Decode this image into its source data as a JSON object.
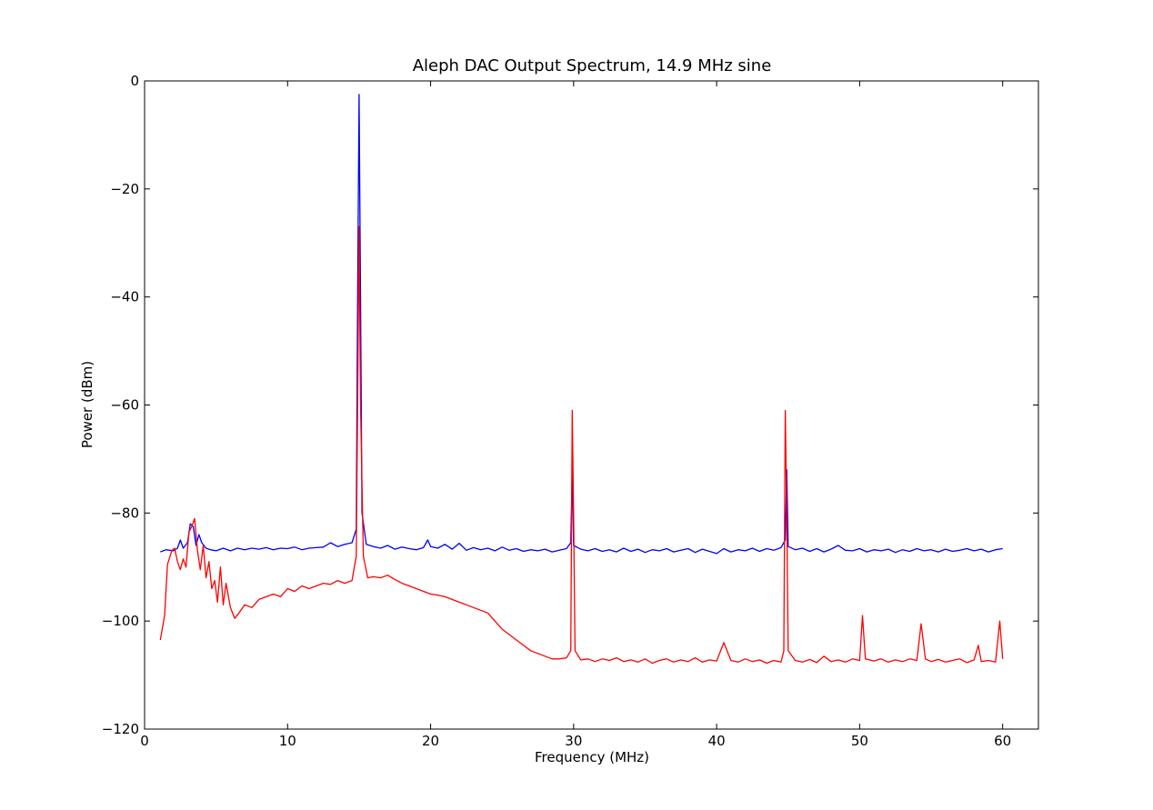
{
  "chart_data": {
    "type": "line",
    "title": "Aleph DAC Output Spectrum, 14.9 MHz sine",
    "xlabel": "Frequency (MHz)",
    "ylabel": "Power (dBm)",
    "xlim": [
      0,
      62.5
    ],
    "ylim": [
      -120,
      0
    ],
    "xticks": [
      0,
      10,
      20,
      30,
      40,
      50,
      60
    ],
    "yticks": [
      0,
      -20,
      -40,
      -60,
      -80,
      -100,
      -120
    ],
    "xtick_labels": [
      "0",
      "10",
      "20",
      "30",
      "40",
      "50",
      "60"
    ],
    "ytick_labels": [
      "0",
      "−20",
      "−40",
      "−60",
      "−80",
      "−100",
      "−120"
    ],
    "grid": false,
    "legend": "none",
    "series": [
      {
        "color": "#0000ff",
        "points": [
          [
            1.1,
            -87.2
          ],
          [
            1.5,
            -86.8
          ],
          [
            2.0,
            -87.0
          ],
          [
            2.3,
            -86.5
          ],
          [
            2.5,
            -85.0
          ],
          [
            2.7,
            -86.5
          ],
          [
            3.0,
            -85.5
          ],
          [
            3.2,
            -82.0
          ],
          [
            3.4,
            -82.5
          ],
          [
            3.6,
            -86.0
          ],
          [
            3.8,
            -84.0
          ],
          [
            4.0,
            -85.5
          ],
          [
            4.3,
            -86.5
          ],
          [
            4.6,
            -86.8
          ],
          [
            5.0,
            -87.0
          ],
          [
            5.5,
            -86.5
          ],
          [
            6.0,
            -87.0
          ],
          [
            6.5,
            -86.5
          ],
          [
            7.0,
            -86.8
          ],
          [
            7.5,
            -86.5
          ],
          [
            8.0,
            -86.7
          ],
          [
            8.5,
            -86.4
          ],
          [
            9.0,
            -86.8
          ],
          [
            9.5,
            -86.5
          ],
          [
            10.0,
            -86.6
          ],
          [
            10.5,
            -86.3
          ],
          [
            11.0,
            -86.8
          ],
          [
            11.5,
            -86.5
          ],
          [
            12.0,
            -86.4
          ],
          [
            12.5,
            -86.3
          ],
          [
            13.0,
            -85.5
          ],
          [
            13.5,
            -86.2
          ],
          [
            14.0,
            -85.8
          ],
          [
            14.5,
            -85.5
          ],
          [
            14.8,
            -83.0
          ],
          [
            14.9,
            -40.0
          ],
          [
            15.0,
            -2.5
          ],
          [
            15.1,
            -40.0
          ],
          [
            15.2,
            -80.0
          ],
          [
            15.5,
            -85.8
          ],
          [
            16.0,
            -86.2
          ],
          [
            16.5,
            -86.5
          ],
          [
            17.0,
            -86.0
          ],
          [
            17.5,
            -86.7
          ],
          [
            18.0,
            -86.3
          ],
          [
            18.5,
            -86.6
          ],
          [
            19.0,
            -86.8
          ],
          [
            19.5,
            -86.4
          ],
          [
            19.8,
            -85.0
          ],
          [
            20.0,
            -86.2
          ],
          [
            20.5,
            -86.5
          ],
          [
            21.0,
            -85.8
          ],
          [
            21.5,
            -86.7
          ],
          [
            22.0,
            -85.6
          ],
          [
            22.5,
            -86.9
          ],
          [
            23.0,
            -86.4
          ],
          [
            23.5,
            -86.8
          ],
          [
            24.0,
            -86.5
          ],
          [
            24.5,
            -87.0
          ],
          [
            25.0,
            -86.3
          ],
          [
            25.5,
            -86.9
          ],
          [
            26.0,
            -86.6
          ],
          [
            26.5,
            -87.1
          ],
          [
            27.0,
            -86.8
          ],
          [
            27.5,
            -87.0
          ],
          [
            28.0,
            -86.7
          ],
          [
            28.5,
            -87.2
          ],
          [
            29.0,
            -86.9
          ],
          [
            29.5,
            -86.6
          ],
          [
            29.8,
            -85.5
          ],
          [
            29.9,
            -72.0
          ],
          [
            30.0,
            -86.0
          ],
          [
            30.5,
            -86.7
          ],
          [
            31.0,
            -87.0
          ],
          [
            31.5,
            -86.6
          ],
          [
            32.0,
            -87.1
          ],
          [
            32.5,
            -86.8
          ],
          [
            33.0,
            -87.2
          ],
          [
            33.5,
            -86.5
          ],
          [
            34.0,
            -87.1
          ],
          [
            34.5,
            -86.7
          ],
          [
            35.0,
            -87.3
          ],
          [
            35.5,
            -86.8
          ],
          [
            36.0,
            -87.0
          ],
          [
            36.5,
            -86.6
          ],
          [
            37.0,
            -87.2
          ],
          [
            37.5,
            -86.9
          ],
          [
            38.0,
            -86.6
          ],
          [
            38.5,
            -87.3
          ],
          [
            39.0,
            -86.7
          ],
          [
            39.5,
            -87.1
          ],
          [
            40.0,
            -87.5
          ],
          [
            40.5,
            -86.6
          ],
          [
            41.0,
            -87.2
          ],
          [
            41.5,
            -86.8
          ],
          [
            42.0,
            -87.0
          ],
          [
            42.5,
            -86.5
          ],
          [
            43.0,
            -87.1
          ],
          [
            43.5,
            -86.6
          ],
          [
            44.0,
            -86.9
          ],
          [
            44.5,
            -86.4
          ],
          [
            44.8,
            -85.0
          ],
          [
            44.9,
            -72.0
          ],
          [
            45.0,
            -86.2
          ],
          [
            45.5,
            -86.8
          ],
          [
            46.0,
            -86.5
          ],
          [
            46.5,
            -87.1
          ],
          [
            47.0,
            -86.6
          ],
          [
            47.5,
            -87.2
          ],
          [
            48.0,
            -86.7
          ],
          [
            48.5,
            -86.0
          ],
          [
            49.0,
            -86.9
          ],
          [
            49.5,
            -87.0
          ],
          [
            50.0,
            -86.6
          ],
          [
            50.5,
            -87.2
          ],
          [
            51.0,
            -86.8
          ],
          [
            51.5,
            -87.0
          ],
          [
            52.0,
            -86.7
          ],
          [
            52.5,
            -87.3
          ],
          [
            53.0,
            -86.8
          ],
          [
            53.5,
            -87.1
          ],
          [
            54.0,
            -86.6
          ],
          [
            54.5,
            -87.0
          ],
          [
            55.0,
            -86.8
          ],
          [
            55.5,
            -87.2
          ],
          [
            56.0,
            -86.7
          ],
          [
            56.5,
            -87.1
          ],
          [
            57.0,
            -86.9
          ],
          [
            57.5,
            -86.6
          ],
          [
            58.0,
            -87.0
          ],
          [
            58.5,
            -86.7
          ],
          [
            59.0,
            -87.2
          ],
          [
            59.5,
            -86.8
          ],
          [
            60.0,
            -86.6
          ]
        ]
      },
      {
        "color": "#ff0000",
        "points": [
          [
            1.1,
            -103.5
          ],
          [
            1.4,
            -99.0
          ],
          [
            1.6,
            -89.5
          ],
          [
            1.9,
            -87.0
          ],
          [
            2.1,
            -86.5
          ],
          [
            2.3,
            -89.0
          ],
          [
            2.5,
            -90.5
          ],
          [
            2.7,
            -88.5
          ],
          [
            2.9,
            -90.0
          ],
          [
            3.1,
            -83.5
          ],
          [
            3.3,
            -82.5
          ],
          [
            3.5,
            -81.0
          ],
          [
            3.7,
            -87.0
          ],
          [
            3.9,
            -90.5
          ],
          [
            4.1,
            -86.0
          ],
          [
            4.3,
            -92.0
          ],
          [
            4.5,
            -89.0
          ],
          [
            4.7,
            -94.0
          ],
          [
            4.9,
            -92.5
          ],
          [
            5.1,
            -96.5
          ],
          [
            5.3,
            -90.0
          ],
          [
            5.5,
            -97.0
          ],
          [
            5.7,
            -93.0
          ],
          [
            6.0,
            -97.5
          ],
          [
            6.3,
            -99.5
          ],
          [
            6.6,
            -98.5
          ],
          [
            7.0,
            -97.0
          ],
          [
            7.5,
            -97.5
          ],
          [
            8.0,
            -96.0
          ],
          [
            8.5,
            -95.5
          ],
          [
            9.0,
            -95.0
          ],
          [
            9.5,
            -95.5
          ],
          [
            10.0,
            -94.0
          ],
          [
            10.5,
            -94.5
          ],
          [
            11.0,
            -93.5
          ],
          [
            11.5,
            -94.0
          ],
          [
            12.0,
            -93.5
          ],
          [
            12.5,
            -93.0
          ],
          [
            13.0,
            -93.2
          ],
          [
            13.5,
            -92.5
          ],
          [
            14.0,
            -93.0
          ],
          [
            14.5,
            -92.5
          ],
          [
            14.8,
            -88.0
          ],
          [
            14.9,
            -60.0
          ],
          [
            15.0,
            -27.0
          ],
          [
            15.1,
            -60.0
          ],
          [
            15.3,
            -88.0
          ],
          [
            15.6,
            -92.0
          ],
          [
            16.0,
            -91.8
          ],
          [
            16.5,
            -92.0
          ],
          [
            17.0,
            -91.5
          ],
          [
            17.5,
            -92.3
          ],
          [
            18.0,
            -93.0
          ],
          [
            18.5,
            -93.5
          ],
          [
            19.0,
            -94.0
          ],
          [
            19.5,
            -94.5
          ],
          [
            20.0,
            -95.0
          ],
          [
            20.5,
            -95.2
          ],
          [
            21.0,
            -95.5
          ],
          [
            21.5,
            -96.0
          ],
          [
            22.0,
            -96.5
          ],
          [
            22.5,
            -97.0
          ],
          [
            23.0,
            -97.5
          ],
          [
            23.5,
            -98.0
          ],
          [
            24.0,
            -98.5
          ],
          [
            24.5,
            -100.0
          ],
          [
            25.0,
            -101.5
          ],
          [
            25.5,
            -102.5
          ],
          [
            26.0,
            -103.5
          ],
          [
            26.5,
            -104.5
          ],
          [
            27.0,
            -105.5
          ],
          [
            27.5,
            -106.0
          ],
          [
            28.0,
            -106.5
          ],
          [
            28.5,
            -107.0
          ],
          [
            29.0,
            -107.0
          ],
          [
            29.5,
            -106.8
          ],
          [
            29.8,
            -105.5
          ],
          [
            29.9,
            -61.0
          ],
          [
            30.0,
            -80.0
          ],
          [
            30.1,
            -105.5
          ],
          [
            30.5,
            -107.2
          ],
          [
            31.0,
            -107.0
          ],
          [
            31.5,
            -107.5
          ],
          [
            32.0,
            -107.0
          ],
          [
            32.5,
            -107.3
          ],
          [
            33.0,
            -106.8
          ],
          [
            33.5,
            -107.5
          ],
          [
            34.0,
            -107.2
          ],
          [
            34.5,
            -107.6
          ],
          [
            35.0,
            -107.0
          ],
          [
            35.5,
            -107.8
          ],
          [
            36.0,
            -107.3
          ],
          [
            36.5,
            -107.0
          ],
          [
            37.0,
            -107.6
          ],
          [
            37.5,
            -107.2
          ],
          [
            38.0,
            -107.5
          ],
          [
            38.5,
            -106.8
          ],
          [
            39.0,
            -107.6
          ],
          [
            39.5,
            -107.2
          ],
          [
            40.0,
            -107.4
          ],
          [
            40.5,
            -104.0
          ],
          [
            41.0,
            -107.3
          ],
          [
            41.5,
            -107.6
          ],
          [
            42.0,
            -107.0
          ],
          [
            42.5,
            -107.5
          ],
          [
            43.0,
            -107.2
          ],
          [
            43.5,
            -107.8
          ],
          [
            44.0,
            -107.3
          ],
          [
            44.5,
            -107.6
          ],
          [
            44.7,
            -105.5
          ],
          [
            44.8,
            -61.0
          ],
          [
            44.9,
            -80.0
          ],
          [
            45.0,
            -105.5
          ],
          [
            45.5,
            -107.3
          ],
          [
            46.0,
            -107.6
          ],
          [
            46.5,
            -107.1
          ],
          [
            47.0,
            -107.7
          ],
          [
            47.5,
            -106.5
          ],
          [
            48.0,
            -107.5
          ],
          [
            48.5,
            -107.2
          ],
          [
            49.0,
            -107.6
          ],
          [
            49.5,
            -107.0
          ],
          [
            50.0,
            -107.3
          ],
          [
            50.2,
            -99.0
          ],
          [
            50.4,
            -107.0
          ],
          [
            51.0,
            -107.4
          ],
          [
            51.5,
            -107.0
          ],
          [
            52.0,
            -107.6
          ],
          [
            52.5,
            -107.2
          ],
          [
            53.0,
            -107.5
          ],
          [
            53.5,
            -107.0
          ],
          [
            54.0,
            -107.3
          ],
          [
            54.3,
            -100.5
          ],
          [
            54.6,
            -107.0
          ],
          [
            55.0,
            -107.5
          ],
          [
            55.5,
            -107.1
          ],
          [
            56.0,
            -107.6
          ],
          [
            56.5,
            -107.3
          ],
          [
            57.0,
            -107.0
          ],
          [
            57.5,
            -107.7
          ],
          [
            58.0,
            -107.2
          ],
          [
            58.3,
            -104.5
          ],
          [
            58.5,
            -107.5
          ],
          [
            59.0,
            -107.3
          ],
          [
            59.5,
            -107.6
          ],
          [
            59.8,
            -100.0
          ],
          [
            60.0,
            -107.0
          ]
        ]
      }
    ]
  }
}
